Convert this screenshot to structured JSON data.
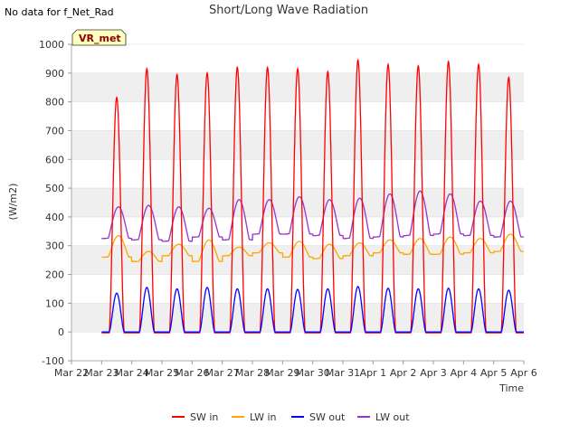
{
  "no_data_note": "No data for f_Net_Rad",
  "site_badge": "VR_met",
  "chart_data": {
    "type": "line",
    "title": "Short/Long Wave Radiation",
    "xlabel": "Time",
    "ylabel": "(W/m2)",
    "ylim": [
      -100,
      1000
    ],
    "yticks": [
      -100,
      0,
      100,
      200,
      300,
      400,
      500,
      600,
      700,
      800,
      900,
      1000
    ],
    "xlim": [
      0,
      15
    ],
    "x_unit": "days since Mar 22",
    "xtick_labels": [
      "Mar 22",
      "Mar 23",
      "Mar 24",
      "Mar 25",
      "Mar 26",
      "Mar 27",
      "Mar 28",
      "Mar 29",
      "Mar 30",
      "Mar 31",
      "Apr 1",
      "Apr 2",
      "Apr 3",
      "Apr 4",
      "Apr 5",
      "Apr 6"
    ],
    "grid": "horizontal bands",
    "legend_position": "bottom",
    "days": [
      "Mar 23",
      "Mar 24",
      "Mar 25",
      "Mar 26",
      "Mar 27",
      "Mar 28",
      "Mar 29",
      "Mar 30",
      "Mar 31",
      "Apr 1",
      "Apr 2",
      "Apr 3",
      "Apr 4",
      "Apr 5"
    ],
    "series": [
      {
        "name": "SW in",
        "color": "#ff0000",
        "daily_peak": [
          815,
          915,
          895,
          900,
          920,
          920,
          915,
          905,
          945,
          930,
          925,
          940,
          930,
          885
        ],
        "night": -3
      },
      {
        "name": "LW in",
        "color": "#ffa500",
        "daily_peak": [
          335,
          280,
          305,
          320,
          295,
          310,
          315,
          305,
          310,
          320,
          325,
          330,
          325,
          340
        ],
        "daily_min": [
          260,
          245,
          265,
          245,
          265,
          275,
          260,
          255,
          265,
          275,
          270,
          270,
          275,
          280
        ]
      },
      {
        "name": "SW out",
        "color": "#0000ff",
        "daily_peak": [
          135,
          155,
          150,
          155,
          150,
          150,
          148,
          150,
          158,
          152,
          150,
          152,
          150,
          145
        ],
        "night": 0
      },
      {
        "name": "LW out",
        "color": "#9932cc",
        "daily_peak": [
          435,
          440,
          435,
          430,
          460,
          460,
          470,
          460,
          465,
          480,
          490,
          480,
          455,
          455
        ],
        "daily_min": [
          325,
          320,
          315,
          330,
          320,
          340,
          340,
          335,
          325,
          330,
          335,
          340,
          335,
          330
        ]
      }
    ]
  }
}
